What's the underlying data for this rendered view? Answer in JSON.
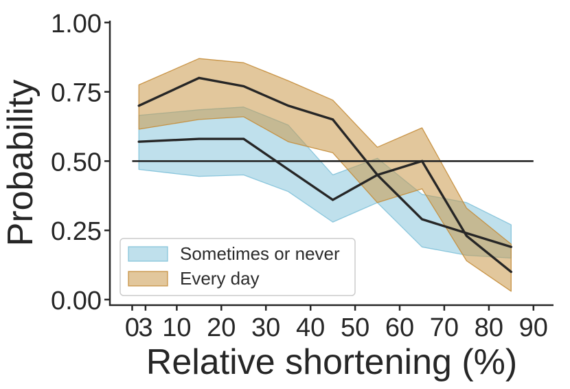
{
  "figure": {
    "background_color": "#ffffff",
    "text_color": "#262626"
  },
  "chart_data": {
    "type": "line",
    "title": "",
    "xlabel": "Relative shortening (%)",
    "ylabel": "Probability",
    "x": [
      1.5,
      15,
      25,
      35,
      45,
      55,
      65,
      75,
      85
    ],
    "series": [
      {
        "name": "Sometimes or never",
        "values": [
          0.57,
          0.58,
          0.58,
          0.47,
          0.36,
          0.45,
          0.29,
          0.24,
          0.19
        ],
        "ci_upper": [
          0.665,
          0.685,
          0.695,
          0.63,
          0.45,
          0.51,
          0.38,
          0.35,
          0.27
        ],
        "ci_lower": [
          0.47,
          0.445,
          0.45,
          0.39,
          0.28,
          0.35,
          0.19,
          0.16,
          0.15
        ],
        "band_fill": "rgba(127,193,217,0.5)",
        "band_edge": "rgba(127,193,217,0.9)"
      },
      {
        "name": "Every day",
        "values": [
          0.7,
          0.8,
          0.77,
          0.7,
          0.65,
          0.45,
          0.5,
          0.23,
          0.1
        ],
        "ci_upper": [
          0.775,
          0.87,
          0.855,
          0.79,
          0.72,
          0.55,
          0.62,
          0.33,
          0.2
        ],
        "ci_lower": [
          0.615,
          0.65,
          0.66,
          0.57,
          0.53,
          0.35,
          0.4,
          0.14,
          0.03
        ],
        "band_fill": "rgba(202,153,75,0.55)",
        "band_edge": "rgba(196,140,56,0.9)"
      }
    ],
    "reference_line": {
      "y": 0.5,
      "x_start": 0,
      "x_end": 90
    },
    "x_ticks": [
      0,
      3,
      10,
      20,
      30,
      40,
      50,
      60,
      70,
      80,
      90
    ],
    "x_tick_labels": [
      "0",
      "3",
      "10",
      "20",
      "30",
      "40",
      "50",
      "60",
      "70",
      "80",
      "90"
    ],
    "y_ticks": [
      0,
      0.25,
      0.5,
      0.75,
      1.0
    ],
    "y_tick_labels": [
      "0.00",
      "0.25",
      "0.50",
      "0.75",
      "1.00"
    ],
    "xlim": [
      -5,
      94.5
    ],
    "ylim": [
      -0.02,
      1.007
    ],
    "grid": false,
    "legend_position": "lower left",
    "line_color": "#262626",
    "axis_color": "#262626"
  }
}
